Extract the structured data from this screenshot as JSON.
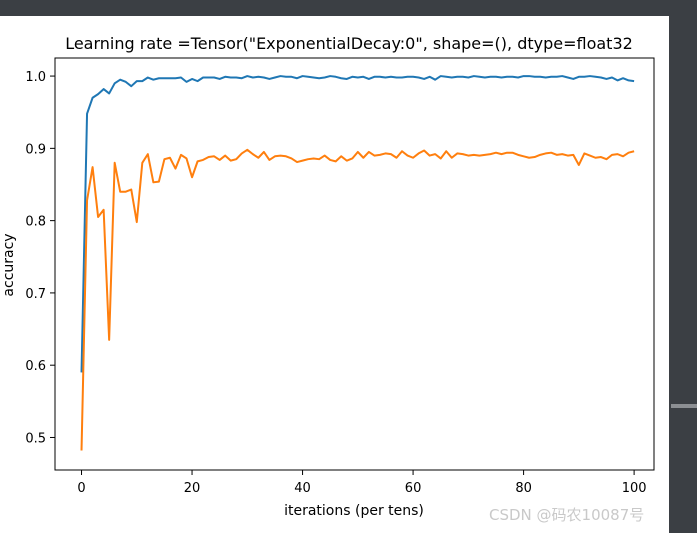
{
  "chart_data": {
    "type": "line",
    "title": "Learning rate =Tensor(\"ExponentialDecay:0\", shape=(), dtype=float32",
    "xlabel": "iterations (per tens)",
    "ylabel": "accuracy",
    "xlim": [
      -4.8,
      103.6
    ],
    "ylim": [
      0.455,
      1.025
    ],
    "xticks": [
      0,
      20,
      40,
      60,
      80,
      100
    ],
    "yticks": [
      0.5,
      0.6,
      0.7,
      0.8,
      0.9,
      1.0
    ],
    "xtick_labels": [
      "0",
      "20",
      "40",
      "60",
      "80",
      "100"
    ],
    "ytick_labels": [
      "0.5",
      "0.6",
      "0.7",
      "0.8",
      "0.9",
      "1.0"
    ],
    "grid": false,
    "series": [
      {
        "color": "#1f77b4",
        "x": [
          0,
          1,
          2,
          3,
          4,
          5,
          6,
          7,
          8,
          9,
          10,
          11,
          12,
          13,
          14,
          15,
          16,
          17,
          18,
          19,
          20,
          21,
          22,
          23,
          24,
          25,
          26,
          27,
          28,
          29,
          30,
          31,
          32,
          33,
          34,
          35,
          36,
          37,
          38,
          39,
          40,
          41,
          42,
          43,
          44,
          45,
          46,
          47,
          48,
          49,
          50,
          51,
          52,
          53,
          54,
          55,
          56,
          57,
          58,
          59,
          60,
          61,
          62,
          63,
          64,
          65,
          66,
          67,
          68,
          69,
          70,
          71,
          72,
          73,
          74,
          75,
          76,
          77,
          78,
          79,
          80,
          81,
          82,
          83,
          84,
          85,
          86,
          87,
          88,
          89,
          90,
          91,
          92,
          93,
          94,
          95,
          96,
          97,
          98,
          99,
          100
        ],
        "values": [
          0.59,
          0.948,
          0.97,
          0.975,
          0.982,
          0.976,
          0.99,
          0.995,
          0.992,
          0.986,
          0.993,
          0.993,
          0.998,
          0.995,
          0.997,
          0.997,
          0.997,
          0.997,
          0.998,
          0.992,
          0.996,
          0.993,
          0.998,
          0.998,
          0.998,
          0.996,
          0.999,
          0.998,
          0.998,
          0.997,
          1.0,
          0.998,
          0.999,
          0.998,
          0.996,
          0.998,
          1.0,
          0.999,
          0.999,
          0.997,
          1.0,
          0.999,
          0.998,
          0.997,
          0.998,
          1.0,
          0.999,
          0.997,
          0.996,
          0.999,
          0.998,
          0.999,
          0.996,
          0.999,
          0.999,
          0.998,
          0.999,
          0.998,
          0.998,
          0.999,
          0.999,
          0.998,
          0.996,
          0.999,
          0.995,
          1.0,
          0.999,
          0.998,
          0.999,
          0.999,
          0.998,
          1.0,
          0.999,
          0.998,
          0.999,
          0.999,
          0.998,
          0.999,
          0.999,
          0.998,
          1.0,
          1.0,
          0.999,
          0.999,
          0.998,
          0.999,
          0.999,
          1.0,
          0.998,
          0.996,
          0.999,
          0.999,
          1.0,
          0.999,
          0.998,
          0.996,
          0.998,
          0.994,
          0.997,
          0.994,
          0.993
        ]
      },
      {
        "color": "#ff7f0e",
        "x": [
          0,
          1,
          2,
          3,
          4,
          5,
          6,
          7,
          8,
          9,
          10,
          11,
          12,
          13,
          14,
          15,
          16,
          17,
          18,
          19,
          20,
          21,
          22,
          23,
          24,
          25,
          26,
          27,
          28,
          29,
          30,
          31,
          32,
          33,
          34,
          35,
          36,
          37,
          38,
          39,
          40,
          41,
          42,
          43,
          44,
          45,
          46,
          47,
          48,
          49,
          50,
          51,
          52,
          53,
          54,
          55,
          56,
          57,
          58,
          59,
          60,
          61,
          62,
          63,
          64,
          65,
          66,
          67,
          68,
          69,
          70,
          71,
          72,
          73,
          74,
          75,
          76,
          77,
          78,
          79,
          80,
          81,
          82,
          83,
          84,
          85,
          86,
          87,
          88,
          89,
          90,
          91,
          92,
          93,
          94,
          95,
          96,
          97,
          98,
          99,
          100
        ],
        "values": [
          0.482,
          0.828,
          0.874,
          0.805,
          0.815,
          0.635,
          0.88,
          0.84,
          0.84,
          0.843,
          0.798,
          0.88,
          0.892,
          0.853,
          0.854,
          0.885,
          0.887,
          0.872,
          0.891,
          0.886,
          0.86,
          0.882,
          0.884,
          0.888,
          0.889,
          0.884,
          0.89,
          0.883,
          0.885,
          0.893,
          0.898,
          0.892,
          0.887,
          0.895,
          0.884,
          0.889,
          0.89,
          0.889,
          0.886,
          0.881,
          0.883,
          0.885,
          0.886,
          0.885,
          0.89,
          0.884,
          0.882,
          0.889,
          0.883,
          0.886,
          0.895,
          0.887,
          0.895,
          0.89,
          0.891,
          0.893,
          0.892,
          0.887,
          0.896,
          0.89,
          0.887,
          0.893,
          0.897,
          0.89,
          0.892,
          0.886,
          0.896,
          0.887,
          0.893,
          0.892,
          0.89,
          0.891,
          0.89,
          0.891,
          0.892,
          0.894,
          0.892,
          0.894,
          0.894,
          0.891,
          0.889,
          0.887,
          0.888,
          0.891,
          0.893,
          0.894,
          0.891,
          0.892,
          0.89,
          0.891,
          0.877,
          0.893,
          0.89,
          0.887,
          0.888,
          0.885,
          0.891,
          0.892,
          0.889,
          0.894,
          0.896
        ]
      }
    ]
  },
  "watermark": "CSDN @码农10087号"
}
